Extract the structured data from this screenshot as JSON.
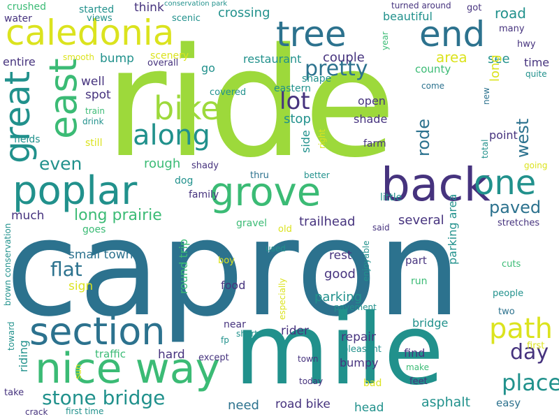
{
  "palette": {
    "purple": "#46337e",
    "blue": "#2c728e",
    "teal": "#21918c",
    "green": "#3bbb75",
    "lime": "#9dd93b",
    "yellow": "#dbe31e"
  },
  "words": [
    {
      "text": "ride",
      "color": "lime"
    },
    {
      "text": "capron",
      "color": "blue"
    },
    {
      "text": "mile",
      "color": "teal"
    },
    {
      "text": "caledonia",
      "color": "yellow"
    },
    {
      "text": "tree",
      "color": "blue"
    },
    {
      "text": "end",
      "color": "blue"
    },
    {
      "text": "poplar",
      "color": "teal"
    },
    {
      "text": "grove",
      "color": "green"
    },
    {
      "text": "back",
      "color": "purple"
    },
    {
      "text": "great",
      "color": "teal"
    },
    {
      "text": "east",
      "color": "green"
    },
    {
      "text": "bike",
      "color": "lime"
    },
    {
      "text": "along",
      "color": "teal"
    },
    {
      "text": "one",
      "color": "teal"
    },
    {
      "text": "section",
      "color": "blue"
    },
    {
      "text": "nice way",
      "color": "green"
    },
    {
      "text": "path",
      "color": "yellow"
    },
    {
      "text": "place",
      "color": "teal"
    },
    {
      "text": "stone bridge",
      "color": "teal"
    },
    {
      "text": "pretty",
      "color": "blue"
    },
    {
      "text": "lot",
      "color": "purple"
    },
    {
      "text": "even",
      "color": "teal"
    },
    {
      "text": "flat",
      "color": "blue"
    },
    {
      "text": "day",
      "color": "purple"
    },
    {
      "text": "paved",
      "color": "blue"
    },
    {
      "text": "rode",
      "color": "blue"
    },
    {
      "text": "west",
      "color": "blue"
    },
    {
      "text": "long prairie",
      "color": "green"
    },
    {
      "text": "road",
      "color": "teal"
    },
    {
      "text": "couple",
      "color": "purple"
    },
    {
      "text": "area",
      "color": "yellow"
    },
    {
      "text": "see",
      "color": "teal"
    },
    {
      "text": "time",
      "color": "purple"
    },
    {
      "text": "county",
      "color": "green"
    },
    {
      "text": "restaurant",
      "color": "teal"
    },
    {
      "text": "crossing",
      "color": "teal"
    },
    {
      "text": "beautiful",
      "color": "teal"
    },
    {
      "text": "think",
      "color": "purple"
    },
    {
      "text": "bump",
      "color": "teal"
    },
    {
      "text": "go",
      "color": "teal"
    },
    {
      "text": "entire",
      "color": "purple"
    },
    {
      "text": "well",
      "color": "purple"
    },
    {
      "text": "spot",
      "color": "purple"
    },
    {
      "text": "stop",
      "color": "teal"
    },
    {
      "text": "open",
      "color": "purple"
    },
    {
      "text": "shade",
      "color": "purple"
    },
    {
      "text": "farm",
      "color": "purple"
    },
    {
      "text": "point",
      "color": "purple"
    },
    {
      "text": "rough",
      "color": "green"
    },
    {
      "text": "dog",
      "color": "teal"
    },
    {
      "text": "family",
      "color": "purple"
    },
    {
      "text": "much",
      "color": "purple"
    },
    {
      "text": "trailhead",
      "color": "purple"
    },
    {
      "text": "several",
      "color": "purple"
    },
    {
      "text": "small towns",
      "color": "blue"
    },
    {
      "text": "round trip",
      "color": "green"
    },
    {
      "text": "rest",
      "color": "purple"
    },
    {
      "text": "good",
      "color": "purple"
    },
    {
      "text": "part",
      "color": "purple"
    },
    {
      "text": "parking",
      "color": "teal"
    },
    {
      "text": "parking area",
      "color": "teal"
    },
    {
      "text": "sign",
      "color": "yellow"
    },
    {
      "text": "food",
      "color": "purple"
    },
    {
      "text": "crosses",
      "color": "blue"
    },
    {
      "text": "near",
      "color": "purple"
    },
    {
      "text": "rider",
      "color": "purple"
    },
    {
      "text": "repair",
      "color": "purple"
    },
    {
      "text": "bridge",
      "color": "teal"
    },
    {
      "text": "hard",
      "color": "purple"
    },
    {
      "text": "bumpy",
      "color": "purple"
    },
    {
      "text": "find",
      "color": "purple"
    },
    {
      "text": "need",
      "color": "blue"
    },
    {
      "text": "road bike",
      "color": "purple"
    },
    {
      "text": "head",
      "color": "teal"
    },
    {
      "text": "asphalt",
      "color": "teal"
    },
    {
      "text": "easy",
      "color": "blue"
    },
    {
      "text": "crushed",
      "color": "green"
    },
    {
      "text": "water",
      "color": "purple"
    },
    {
      "text": "views",
      "color": "teal"
    },
    {
      "text": "started",
      "color": "teal"
    },
    {
      "text": "scenic",
      "color": "teal"
    },
    {
      "text": "conservation park",
      "color": "teal"
    },
    {
      "text": "turned around",
      "color": "purple"
    },
    {
      "text": "got",
      "color": "purple"
    },
    {
      "text": "many",
      "color": "purple"
    },
    {
      "text": "long",
      "color": "yellow"
    },
    {
      "text": "hwy",
      "color": "purple"
    },
    {
      "text": "year",
      "color": "green"
    },
    {
      "text": "smooth",
      "color": "yellow"
    },
    {
      "text": "scenery",
      "color": "yellow"
    },
    {
      "text": "overall",
      "color": "purple"
    },
    {
      "text": "quite",
      "color": "teal"
    },
    {
      "text": "shape",
      "color": "teal"
    },
    {
      "text": "eastern",
      "color": "teal"
    },
    {
      "text": "come",
      "color": "blue"
    },
    {
      "text": "covered",
      "color": "teal"
    },
    {
      "text": "new",
      "color": "blue"
    },
    {
      "text": "train",
      "color": "green"
    },
    {
      "text": "drink",
      "color": "teal"
    },
    {
      "text": "fields",
      "color": "teal"
    },
    {
      "text": "still",
      "color": "yellow"
    },
    {
      "text": "side",
      "color": "teal"
    },
    {
      "text": "right",
      "color": "yellow"
    },
    {
      "text": "total",
      "color": "teal"
    },
    {
      "text": "going",
      "color": "yellow"
    },
    {
      "text": "shady",
      "color": "purple"
    },
    {
      "text": "thru",
      "color": "blue"
    },
    {
      "text": "better",
      "color": "teal"
    },
    {
      "text": "little",
      "color": "teal"
    },
    {
      "text": "gravel",
      "color": "green"
    },
    {
      "text": "goes",
      "color": "green"
    },
    {
      "text": "old",
      "color": "yellow"
    },
    {
      "text": "said",
      "color": "purple"
    },
    {
      "text": "stretches",
      "color": "purple"
    },
    {
      "text": "brown conservation",
      "color": "teal"
    },
    {
      "text": "used",
      "color": "teal"
    },
    {
      "text": "boy",
      "color": "yellow"
    },
    {
      "text": "enjoyable",
      "color": "teal"
    },
    {
      "text": "especially",
      "color": "yellow"
    },
    {
      "text": "run",
      "color": "green"
    },
    {
      "text": "cuts",
      "color": "green"
    },
    {
      "text": "people",
      "color": "teal"
    },
    {
      "text": "pavement",
      "color": "teal"
    },
    {
      "text": "two",
      "color": "blue"
    },
    {
      "text": "short",
      "color": "teal"
    },
    {
      "text": "fp",
      "color": "teal"
    },
    {
      "text": "except",
      "color": "purple"
    },
    {
      "text": "pleasant",
      "color": "teal"
    },
    {
      "text": "first",
      "color": "yellow"
    },
    {
      "text": "traffic",
      "color": "green"
    },
    {
      "text": "toward",
      "color": "teal"
    },
    {
      "text": "riding",
      "color": "teal"
    },
    {
      "text": "sun",
      "color": "yellow"
    },
    {
      "text": "town",
      "color": "purple"
    },
    {
      "text": "make",
      "color": "green"
    },
    {
      "text": "today",
      "color": "purple"
    },
    {
      "text": "bad",
      "color": "yellow"
    },
    {
      "text": "feet",
      "color": "purple"
    },
    {
      "text": "take",
      "color": "purple"
    },
    {
      "text": "crack",
      "color": "purple"
    },
    {
      "text": "first time",
      "color": "teal"
    },
    {
      "text": "half mile",
      "color": "teal"
    }
  ]
}
